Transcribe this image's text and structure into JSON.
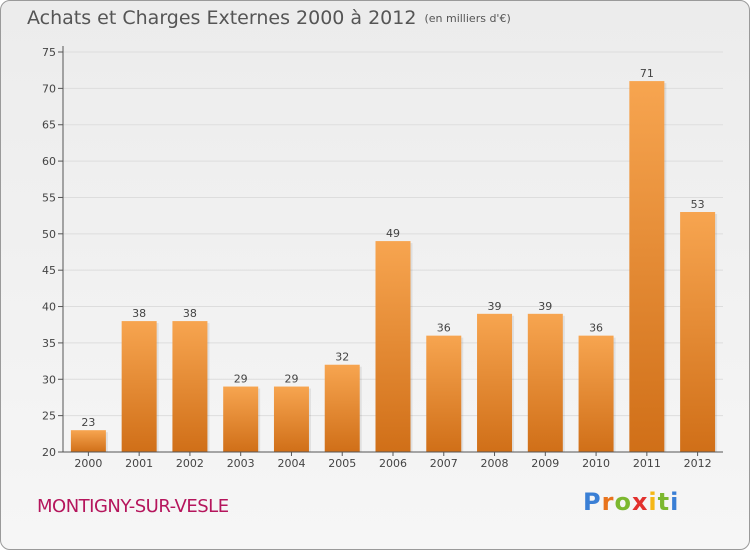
{
  "title": "Achats et Charges Externes 2000 à 2012",
  "subtitle": "(en milliers d'€)",
  "place_name": "MONTIGNY-SUR-VESLE",
  "logo": {
    "letters": [
      {
        "char": "P",
        "color": "#3a7fd5"
      },
      {
        "char": "r",
        "color": "#e8731c"
      },
      {
        "char": "o",
        "color": "#7cb82f"
      },
      {
        "char": "x",
        "color": "#e2302d"
      },
      {
        "char": "i",
        "color": "#f5b715"
      },
      {
        "char": "t",
        "color": "#7cb82f"
      },
      {
        "char": "i",
        "color": "#3a7fd5"
      }
    ]
  },
  "colors": {
    "bar_light": "#f7a550",
    "bar_dark": "#d06f18",
    "axis": "#555555",
    "grid": "#dddddd",
    "place": "#b5155c"
  },
  "chart_data": {
    "type": "bar",
    "categories": [
      "2000",
      "2001",
      "2002",
      "2003",
      "2004",
      "2005",
      "2006",
      "2007",
      "2008",
      "2009",
      "2010",
      "2011",
      "2012"
    ],
    "values": [
      23,
      38,
      38,
      29,
      29,
      32,
      49,
      36,
      39,
      39,
      36,
      71,
      53
    ],
    "ylim": [
      20,
      75
    ],
    "yticks": [
      20,
      25,
      30,
      35,
      40,
      45,
      50,
      55,
      60,
      65,
      70,
      75
    ],
    "grid": true,
    "data_labels": true
  }
}
